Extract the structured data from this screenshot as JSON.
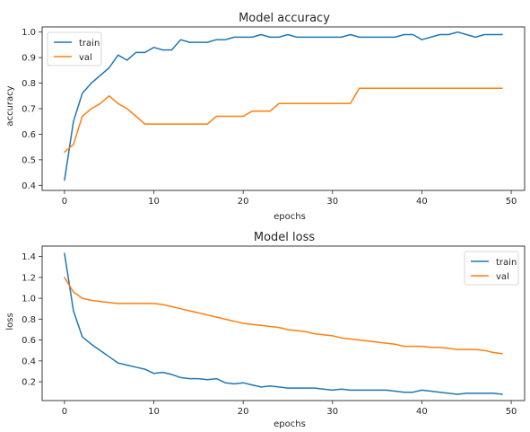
{
  "chart_data": [
    {
      "type": "line",
      "title": "Model accuracy",
      "xlabel": "epochs",
      "ylabel": "accuracy",
      "xlim": [
        -2.5,
        51.5
      ],
      "ylim": [
        0.38,
        1.02
      ],
      "xticks": [
        0,
        10,
        20,
        30,
        40,
        50
      ],
      "yticks": [
        0.4,
        0.5,
        0.6,
        0.7,
        0.8,
        0.9,
        1.0
      ],
      "ytick_labels": [
        "0.4",
        "0.5",
        "0.6",
        "0.7",
        "0.8",
        "0.9",
        "1.0"
      ],
      "legend": "upper left",
      "grid": false,
      "series": [
        {
          "name": "train",
          "color": "#1f77b4",
          "x": [
            0,
            1,
            2,
            3,
            4,
            5,
            6,
            7,
            8,
            9,
            10,
            11,
            12,
            13,
            14,
            15,
            16,
            17,
            18,
            19,
            20,
            21,
            22,
            23,
            24,
            25,
            26,
            27,
            28,
            29,
            30,
            31,
            32,
            33,
            34,
            35,
            36,
            37,
            38,
            39,
            40,
            41,
            42,
            43,
            44,
            45,
            46,
            47,
            48,
            49
          ],
          "y": [
            0.42,
            0.65,
            0.76,
            0.8,
            0.83,
            0.86,
            0.91,
            0.89,
            0.92,
            0.92,
            0.94,
            0.93,
            0.93,
            0.97,
            0.96,
            0.96,
            0.96,
            0.97,
            0.97,
            0.98,
            0.98,
            0.98,
            0.99,
            0.98,
            0.98,
            0.99,
            0.98,
            0.98,
            0.98,
            0.98,
            0.98,
            0.98,
            0.99,
            0.98,
            0.98,
            0.98,
            0.98,
            0.98,
            0.99,
            0.99,
            0.97,
            0.98,
            0.99,
            0.99,
            1.0,
            0.99,
            0.98,
            0.99,
            0.99,
            0.99
          ]
        },
        {
          "name": "val",
          "color": "#ff7f0e",
          "x": [
            0,
            1,
            2,
            3,
            4,
            5,
            6,
            7,
            8,
            9,
            10,
            11,
            12,
            13,
            14,
            15,
            16,
            17,
            18,
            19,
            20,
            21,
            22,
            23,
            24,
            25,
            26,
            27,
            28,
            29,
            30,
            31,
            32,
            33,
            34,
            35,
            36,
            37,
            38,
            39,
            40,
            41,
            42,
            43,
            44,
            45,
            46,
            47,
            48,
            49
          ],
          "y": [
            0.53,
            0.56,
            0.67,
            0.7,
            0.72,
            0.75,
            0.72,
            0.7,
            0.67,
            0.64,
            0.64,
            0.64,
            0.64,
            0.64,
            0.64,
            0.64,
            0.64,
            0.67,
            0.67,
            0.67,
            0.67,
            0.69,
            0.69,
            0.69,
            0.72,
            0.72,
            0.72,
            0.72,
            0.72,
            0.72,
            0.72,
            0.72,
            0.72,
            0.78,
            0.78,
            0.78,
            0.78,
            0.78,
            0.78,
            0.78,
            0.78,
            0.78,
            0.78,
            0.78,
            0.78,
            0.78,
            0.78,
            0.78,
            0.78,
            0.78
          ]
        }
      ]
    },
    {
      "type": "line",
      "title": "Model loss",
      "xlabel": "epochs",
      "ylabel": "loss",
      "xlim": [
        -2.5,
        51.5
      ],
      "ylim": [
        0.02,
        1.5
      ],
      "xticks": [
        0,
        10,
        20,
        30,
        40,
        50
      ],
      "yticks": [
        0.2,
        0.4,
        0.6,
        0.8,
        1.0,
        1.2,
        1.4
      ],
      "ytick_labels": [
        "0.2",
        "0.4",
        "0.6",
        "0.8",
        "1.0",
        "1.2",
        "1.4"
      ],
      "legend": "upper right",
      "grid": false,
      "series": [
        {
          "name": "train",
          "color": "#1f77b4",
          "x": [
            0,
            1,
            2,
            3,
            4,
            5,
            6,
            7,
            8,
            9,
            10,
            11,
            12,
            13,
            14,
            15,
            16,
            17,
            18,
            19,
            20,
            21,
            22,
            23,
            24,
            25,
            26,
            27,
            28,
            29,
            30,
            31,
            32,
            33,
            34,
            35,
            36,
            37,
            38,
            39,
            40,
            41,
            42,
            43,
            44,
            45,
            46,
            47,
            48,
            49
          ],
          "y": [
            1.43,
            0.88,
            0.63,
            0.56,
            0.5,
            0.44,
            0.38,
            0.36,
            0.34,
            0.32,
            0.28,
            0.29,
            0.27,
            0.24,
            0.23,
            0.23,
            0.22,
            0.23,
            0.19,
            0.18,
            0.19,
            0.17,
            0.15,
            0.16,
            0.15,
            0.14,
            0.14,
            0.14,
            0.14,
            0.13,
            0.12,
            0.13,
            0.12,
            0.12,
            0.12,
            0.12,
            0.12,
            0.11,
            0.1,
            0.1,
            0.12,
            0.11,
            0.1,
            0.09,
            0.08,
            0.09,
            0.09,
            0.09,
            0.09,
            0.08
          ]
        },
        {
          "name": "val",
          "color": "#ff7f0e",
          "x": [
            0,
            1,
            2,
            3,
            4,
            5,
            6,
            7,
            8,
            9,
            10,
            11,
            12,
            13,
            14,
            15,
            16,
            17,
            18,
            19,
            20,
            21,
            22,
            23,
            24,
            25,
            26,
            27,
            28,
            29,
            30,
            31,
            32,
            33,
            34,
            35,
            36,
            37,
            38,
            39,
            40,
            41,
            42,
            43,
            44,
            45,
            46,
            47,
            48,
            49
          ],
          "y": [
            1.2,
            1.06,
            1.0,
            0.98,
            0.97,
            0.96,
            0.95,
            0.95,
            0.95,
            0.95,
            0.95,
            0.94,
            0.92,
            0.9,
            0.88,
            0.86,
            0.84,
            0.82,
            0.8,
            0.78,
            0.76,
            0.75,
            0.74,
            0.73,
            0.72,
            0.7,
            0.69,
            0.68,
            0.66,
            0.65,
            0.64,
            0.62,
            0.61,
            0.6,
            0.59,
            0.58,
            0.57,
            0.56,
            0.54,
            0.54,
            0.54,
            0.53,
            0.53,
            0.52,
            0.51,
            0.51,
            0.51,
            0.5,
            0.48,
            0.47
          ]
        }
      ]
    }
  ]
}
